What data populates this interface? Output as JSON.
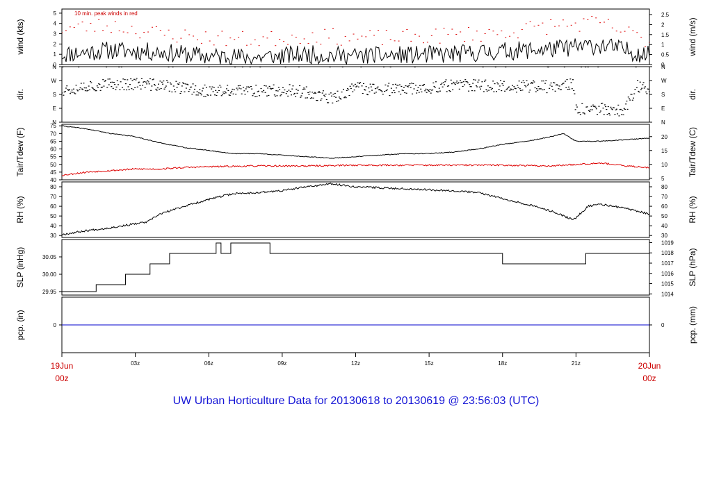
{
  "title": "UW Urban Horticulture Data for 20130618  to  20130619 @ 23:56:03  (UTC)",
  "colors": {
    "primary": "#000000",
    "secondary": "#dd0000",
    "precip": "#0000cc",
    "title": "#1515d6",
    "date_labels": "#cc0000"
  },
  "chart_data": [
    {
      "type": "line",
      "id": "wind",
      "ylabel_left": "wind (kts)",
      "ylabel_right": "wind (m/s)",
      "annotation": "10 min. peak winds in red",
      "ylim": [
        0,
        5.4
      ],
      "left_ticks": [
        0,
        1,
        2,
        3,
        4,
        5
      ],
      "right_ticks": [
        0,
        0.5,
        1,
        1.5,
        2,
        2.5
      ],
      "right_tick_labels": [
        "0",
        "0.5",
        "1",
        "1.5",
        "2",
        "2.5"
      ],
      "right_to_left": 1.9438,
      "series": [
        {
          "name": "",
          "style": "line",
          "color": "#000000",
          "x": [
            0,
            2,
            4,
            6,
            8,
            10,
            12,
            14,
            16,
            18,
            20,
            22,
            24
          ],
          "y": [
            1.0,
            1.4,
            1.2,
            0.8,
            0.7,
            1.0,
            0.8,
            0.9,
            1.0,
            1.3,
            1.5,
            1.9,
            0.9
          ],
          "noise": 0.9,
          "points": 420,
          "seed": 11
        },
        {
          "name": "10 min. peak winds",
          "style": "dash",
          "color": "#dd0000",
          "x": [
            0,
            2,
            4,
            6,
            8,
            10,
            12,
            14,
            16,
            18,
            20,
            22,
            24
          ],
          "y": [
            3.5,
            3.8,
            3.0,
            2.6,
            2.4,
            2.8,
            2.6,
            2.6,
            2.9,
            3.1,
            3.8,
            4.0,
            2.3
          ],
          "noise": 0.8,
          "points": 144,
          "seed": 23
        }
      ]
    },
    {
      "type": "scatter",
      "id": "dir",
      "ylabel_left": "dir.",
      "ylabel_right": "dir.",
      "ylim": [
        0,
        360
      ],
      "left_ticks": [
        0,
        90,
        180,
        270,
        360
      ],
      "left_tick_labels": [
        "N",
        "E",
        "S",
        "W",
        "N"
      ],
      "right_ticks": [
        0,
        90,
        180,
        270,
        360
      ],
      "right_tick_labels": [
        "N",
        "E",
        "S",
        "W",
        "N"
      ],
      "series": [
        {
          "name": "",
          "style": "dots",
          "color": "#000000",
          "x": [
            0,
            1,
            2,
            3,
            4,
            5,
            6,
            8,
            9,
            10,
            11,
            12,
            14,
            16,
            18,
            20,
            20.9,
            21,
            22,
            23,
            23.5,
            24
          ],
          "y": [
            210,
            235,
            245,
            250,
            240,
            220,
            200,
            205,
            210,
            195,
            150,
            220,
            210,
            240,
            235,
            230,
            245,
            80,
            85,
            80,
            240,
            210
          ],
          "noise": 40,
          "points": 700,
          "seed": 37
        }
      ]
    },
    {
      "type": "line",
      "id": "temp",
      "ylabel_left": "Tair/Tdew (F)",
      "ylabel_right": "Tair/Tdew (C)",
      "ylim": [
        40,
        76
      ],
      "left_ticks": [
        40,
        45,
        50,
        55,
        60,
        65,
        70,
        75
      ],
      "right_ticks": [
        5,
        10,
        15,
        20
      ],
      "right_tick_labels": [
        "5",
        "10",
        "15",
        "20"
      ],
      "right_to_left": 1.8,
      "right_offset": 32,
      "series": [
        {
          "name": "Tair",
          "style": "line",
          "color": "#000000",
          "x": [
            0,
            1,
            2,
            3,
            4,
            5,
            6,
            7,
            8,
            9,
            10,
            11,
            12,
            13,
            14,
            15,
            16,
            17,
            18,
            19,
            20,
            20.5,
            21,
            22,
            23,
            24
          ],
          "y": [
            75,
            73,
            70,
            68,
            64,
            61,
            59,
            57,
            57,
            56,
            55,
            54,
            55,
            56,
            57,
            57,
            58,
            60,
            63,
            65,
            68,
            70,
            65,
            65,
            66,
            67
          ],
          "noise": 0.25,
          "points": 600,
          "seed": 41
        },
        {
          "name": "Tdew",
          "style": "line",
          "color": "#dd0000",
          "x": [
            0,
            1,
            2,
            3,
            4,
            5,
            6,
            8,
            10,
            12,
            14,
            16,
            18,
            20,
            21,
            22,
            23,
            24
          ],
          "y": [
            43,
            45,
            46,
            47,
            47,
            48,
            48.5,
            49,
            49,
            49.5,
            49.5,
            49.5,
            49.5,
            49,
            50,
            51,
            49,
            48
          ],
          "noise": 0.5,
          "points": 600,
          "seed": 53
        }
      ]
    },
    {
      "type": "line",
      "id": "rh",
      "ylabel_left": "RH (%)",
      "ylabel_right": "RH (%)",
      "ylim": [
        28,
        85
      ],
      "left_ticks": [
        30,
        40,
        50,
        60,
        70,
        80
      ],
      "right_ticks": [
        30,
        40,
        50,
        60,
        70,
        80
      ],
      "right_tick_labels": [
        "30",
        "40",
        "50",
        "60",
        "70",
        "80"
      ],
      "series": [
        {
          "name": "",
          "style": "line",
          "color": "#000000",
          "x": [
            0,
            1,
            2,
            3,
            3.5,
            4,
            5,
            6,
            7,
            8,
            9,
            10,
            11,
            12,
            13,
            14,
            15,
            16,
            17,
            18,
            19,
            20,
            20.9,
            21.5,
            22,
            23,
            24
          ],
          "y": [
            31,
            35,
            38,
            42,
            44,
            52,
            60,
            67,
            73,
            74,
            76,
            80,
            83,
            80,
            79,
            78,
            77,
            76,
            74,
            68,
            62,
            55,
            46,
            60,
            62,
            58,
            52
          ],
          "noise": 1.0,
          "points": 600,
          "seed": 67
        }
      ]
    },
    {
      "type": "line",
      "id": "slp",
      "ylabel_left": "SLP (inHg)",
      "ylabel_right": "SLP (hPa)",
      "ylim": [
        29.94,
        30.1
      ],
      "left_ticks": [
        29.95,
        30.0,
        30.05
      ],
      "left_tick_labels": [
        "29.95",
        "30.00",
        "30.05"
      ],
      "right_ticks": [
        1014,
        1015,
        1016,
        1017,
        1018,
        1019
      ],
      "right_tick_labels": [
        "1014",
        "1015",
        "1016",
        "1017",
        "1018",
        "1019"
      ],
      "right_to_left": 0.02953,
      "series": [
        {
          "name": "",
          "style": "step",
          "color": "#000000",
          "x": [
            0,
            1.4,
            2.6,
            3.6,
            4.4,
            6.3,
            6.5,
            6.9,
            7.5,
            8.5,
            9.0,
            18.0,
            21.4,
            24
          ],
          "y": [
            29.95,
            29.97,
            30.0,
            30.03,
            30.06,
            30.09,
            30.06,
            30.09,
            30.09,
            30.06,
            30.06,
            30.03,
            30.06,
            30.06
          ]
        }
      ]
    },
    {
      "type": "line",
      "id": "pcp",
      "ylabel_left": "pcp. (in)",
      "ylabel_right": "pcp. (mm)",
      "ylim": [
        -1,
        1
      ],
      "left_ticks": [
        0
      ],
      "right_ticks": [
        0
      ],
      "right_tick_labels": [
        "0"
      ],
      "series": [
        {
          "name": "",
          "style": "line",
          "color": "#0000cc",
          "x": [
            0,
            24
          ],
          "y": [
            0,
            0
          ]
        }
      ]
    }
  ],
  "x_axis": {
    "ticks": [
      0,
      3,
      6,
      9,
      12,
      15,
      18,
      21,
      24
    ],
    "labels": [
      "19Jun 00z",
      "03z",
      "06z",
      "09z",
      "12z",
      "15z",
      "18z",
      "21z",
      "20Jun 00z"
    ],
    "start_label": {
      "line1": "19Jun",
      "line2": "00z"
    },
    "end_label": {
      "line1": "20Jun",
      "line2": "00z"
    }
  }
}
